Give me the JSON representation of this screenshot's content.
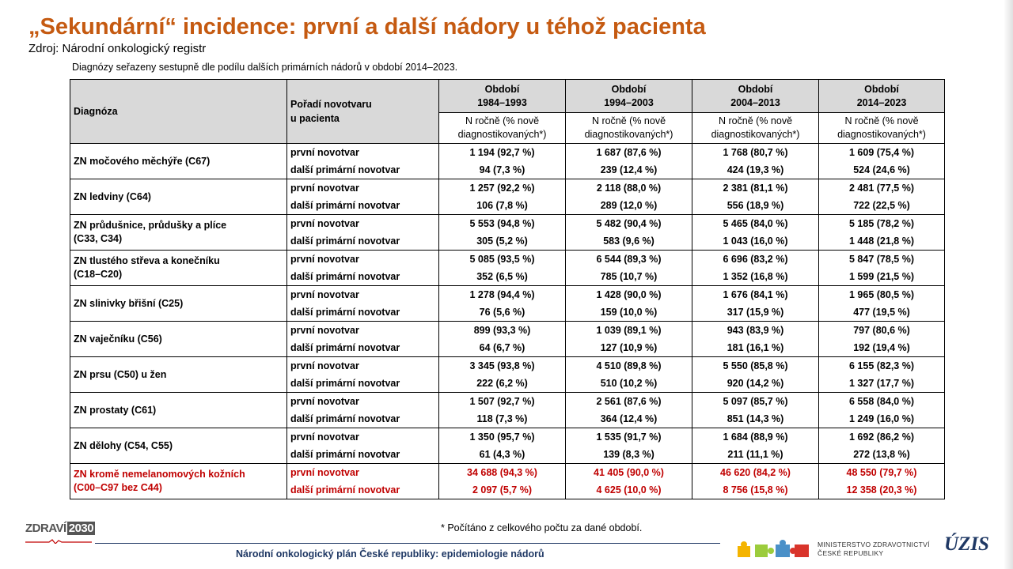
{
  "title": "„Sekundární“ incidence: první a další nádory u téhož pacienta",
  "source": "Zdroj: Národní onkologický registr",
  "note": "Diagnózy seřazeny sestupně dle podílu dalších primárních nádorů v období 2014–2023.",
  "table": {
    "col_diag": "Diagnóza",
    "col_order": [
      "Pořadí novotvaru",
      "u pacienta"
    ],
    "periods": [
      {
        "label": "Období",
        "years": "1984–1993"
      },
      {
        "label": "Období",
        "years": "1994–2003"
      },
      {
        "label": "Období",
        "years": "2004–2013"
      },
      {
        "label": "Období",
        "years": "2014–2023"
      }
    ],
    "sub_header": [
      "N ročně (% nově",
      "diagnostikovaných*)"
    ],
    "order_first": "první novotvar",
    "order_next": "další primární novotvar",
    "rows": [
      {
        "diag": [
          "ZN močového měchýře (C67)"
        ],
        "first": [
          "1 194 (92,7 %)",
          "1 687 (87,6 %)",
          "1 768 (80,7 %)",
          "1 609 (75,4 %)"
        ],
        "next": [
          "94 (7,3 %)",
          "239 (12,4 %)",
          "424 (19,3 %)",
          "524 (24,6 %)"
        ]
      },
      {
        "diag": [
          "ZN ledviny (C64)"
        ],
        "first": [
          "1 257 (92,2 %)",
          "2 118 (88,0 %)",
          "2 381 (81,1 %)",
          "2 481 (77,5 %)"
        ],
        "next": [
          "106 (7,8 %)",
          "289 (12,0 %)",
          "556 (18,9 %)",
          "722 (22,5 %)"
        ]
      },
      {
        "diag": [
          "ZN průdušnice, průdušky a plíce",
          "(C33, C34)"
        ],
        "first": [
          "5 553 (94,8 %)",
          "5 482 (90,4 %)",
          "5 465 (84,0 %)",
          "5 185 (78,2 %)"
        ],
        "next": [
          "305 (5,2 %)",
          "583 (9,6 %)",
          "1 043 (16,0 %)",
          "1 448 (21,8 %)"
        ]
      },
      {
        "diag": [
          "ZN tlustého střeva a konečníku",
          "(C18–C20)"
        ],
        "first": [
          "5 085 (93,5 %)",
          "6 544 (89,3 %)",
          "6 696 (83,2 %)",
          "5 847 (78,5 %)"
        ],
        "next": [
          "352 (6,5 %)",
          "785 (10,7 %)",
          "1 352 (16,8 %)",
          "1 599 (21,5 %)"
        ]
      },
      {
        "diag": [
          "ZN slinivky břišní (C25)"
        ],
        "first": [
          "1 278 (94,4 %)",
          "1 428 (90,0 %)",
          "1 676 (84,1 %)",
          "1 965 (80,5 %)"
        ],
        "next": [
          "76 (5,6 %)",
          "159 (10,0 %)",
          "317 (15,9 %)",
          "477 (19,5 %)"
        ]
      },
      {
        "diag": [
          "ZN vaječníku (C56)"
        ],
        "first": [
          "899 (93,3 %)",
          "1 039 (89,1 %)",
          "943 (83,9 %)",
          "797 (80,6 %)"
        ],
        "next": [
          "64 (6,7 %)",
          "127 (10,9 %)",
          "181 (16,1 %)",
          "192 (19,4 %)"
        ]
      },
      {
        "diag": [
          "ZN prsu (C50) u žen"
        ],
        "first": [
          "3 345 (93,8 %)",
          "4 510 (89,8 %)",
          "5 550 (85,8 %)",
          "6 155 (82,3 %)"
        ],
        "next": [
          "222 (6,2 %)",
          "510 (10,2 %)",
          "920 (14,2 %)",
          "1 327 (17,7 %)"
        ]
      },
      {
        "diag": [
          "ZN prostaty (C61)"
        ],
        "first": [
          "1 507 (92,7 %)",
          "2 561 (87,6 %)",
          "5 097 (85,7 %)",
          "6 558 (84,0 %)"
        ],
        "next": [
          "118 (7,3 %)",
          "364 (12,4 %)",
          "851 (14,3 %)",
          "1 249 (16,0 %)"
        ]
      },
      {
        "diag": [
          "ZN dělohy (C54, C55)"
        ],
        "first": [
          "1 350 (95,7 %)",
          "1 535 (91,7 %)",
          "1 684 (88,9 %)",
          "1 692 (86,2 %)"
        ],
        "next": [
          "61 (4,3 %)",
          "139 (8,3 %)",
          "211 (11,1 %)",
          "272 (13,8 %)"
        ]
      },
      {
        "diag": [
          "ZN kromě nemelanomových kožních",
          "(C00–C97 bez C44)"
        ],
        "first": [
          "34 688 (94,3 %)",
          "41 405 (90,0 %)",
          "46 620 (84,2 %)",
          "48 550 (79,7 %)"
        ],
        "next": [
          "2 097 (5,7 %)",
          "4 625 (10,0 %)",
          "8 756 (15,8 %)",
          "12 358 (20,3 %)"
        ],
        "highlight": true
      }
    ]
  },
  "footnote": "* Počítáno z celkového počtu za dané období.",
  "footer": {
    "plan": "Národní onkologický plán České republiky: epidemiologie nádorů",
    "logo_zdravi": "ZDRAVÍ",
    "logo_year": "2030",
    "ministry": [
      "MINISTERSTVO ZDRAVOTNICTVÍ",
      "ČESKÉ REPUBLIKY"
    ],
    "uzis": "ÚZIS",
    "accent": "#c55a11",
    "highlight_color": "#c00000"
  }
}
